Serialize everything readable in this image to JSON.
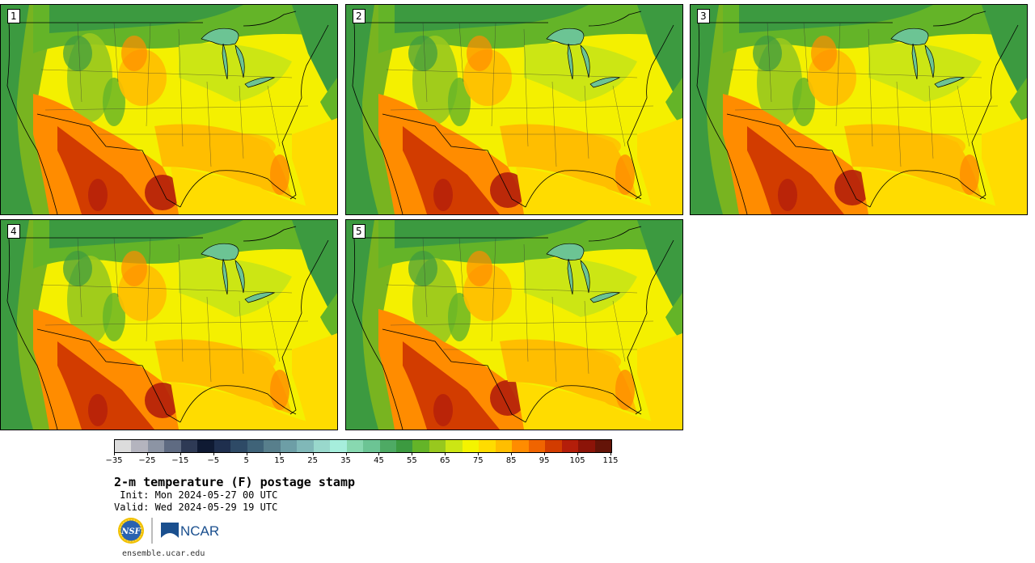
{
  "panels": [
    {
      "label": "1"
    },
    {
      "label": "2"
    },
    {
      "label": "3"
    },
    {
      "label": "4"
    },
    {
      "label": "5"
    }
  ],
  "colorbar": {
    "colors": [
      "#dcdcdc",
      "#b4b4be",
      "#8c94a4",
      "#5f6b82",
      "#2e3a55",
      "#0f1a33",
      "#1f2f4e",
      "#2e4a66",
      "#3f6378",
      "#587f8c",
      "#6d9ea6",
      "#80b8b8",
      "#99d8cc",
      "#a6eedc",
      "#88d8b0",
      "#6cc494",
      "#4eaa64",
      "#3c9a40",
      "#64b428",
      "#98c81e",
      "#cce614",
      "#f4f400",
      "#ffdc00",
      "#ffbe00",
      "#ff8c00",
      "#f06400",
      "#d23c00",
      "#b41e0a",
      "#8c1408",
      "#641408"
    ],
    "ticks": [
      "−35",
      "−25",
      "−15",
      "−5",
      "5",
      "15",
      "25",
      "35",
      "45",
      "55",
      "65",
      "75",
      "85",
      "95",
      "105",
      "115"
    ]
  },
  "title": "2-m temperature (F) postage stamp",
  "init": " Init: Mon 2024-05-27 00 UTC",
  "valid": "Valid: Wed 2024-05-29 19 UTC",
  "logos": {
    "nsf": "NSF",
    "ncar": "NCAR"
  },
  "website": "ensemble.ucar.edu"
}
